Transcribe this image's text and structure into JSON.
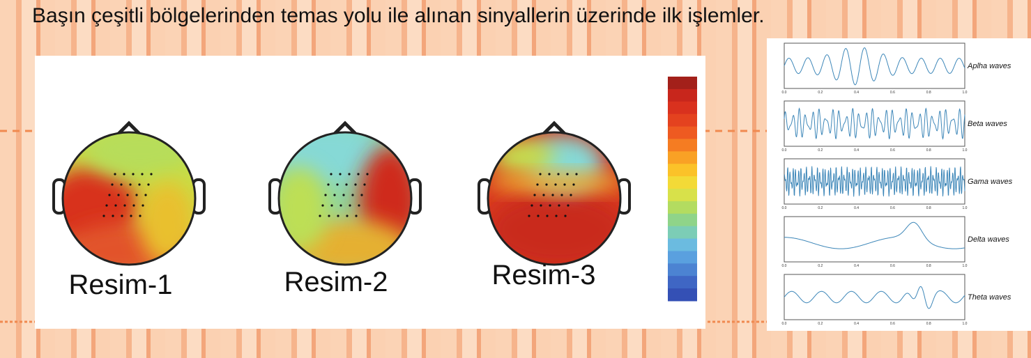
{
  "header": {
    "title": "Başın çeşitli bölgelerinden temas yolu ile alınan sinyallerin üzerinde ilk işlemler."
  },
  "maps": [
    {
      "label": "Resim-1"
    },
    {
      "label": "Resim-2"
    },
    {
      "label": "Resim-3"
    }
  ],
  "waves": [
    {
      "label": "Aplha waves"
    },
    {
      "label": "Beta waves"
    },
    {
      "label": "Gama waves"
    },
    {
      "label": "Delta waves"
    },
    {
      "label": "Theta waves"
    }
  ],
  "wave_axis_ticks": [
    "0.0",
    "0.2",
    "0.4",
    "0.6",
    "0.8",
    "1.0"
  ]
}
